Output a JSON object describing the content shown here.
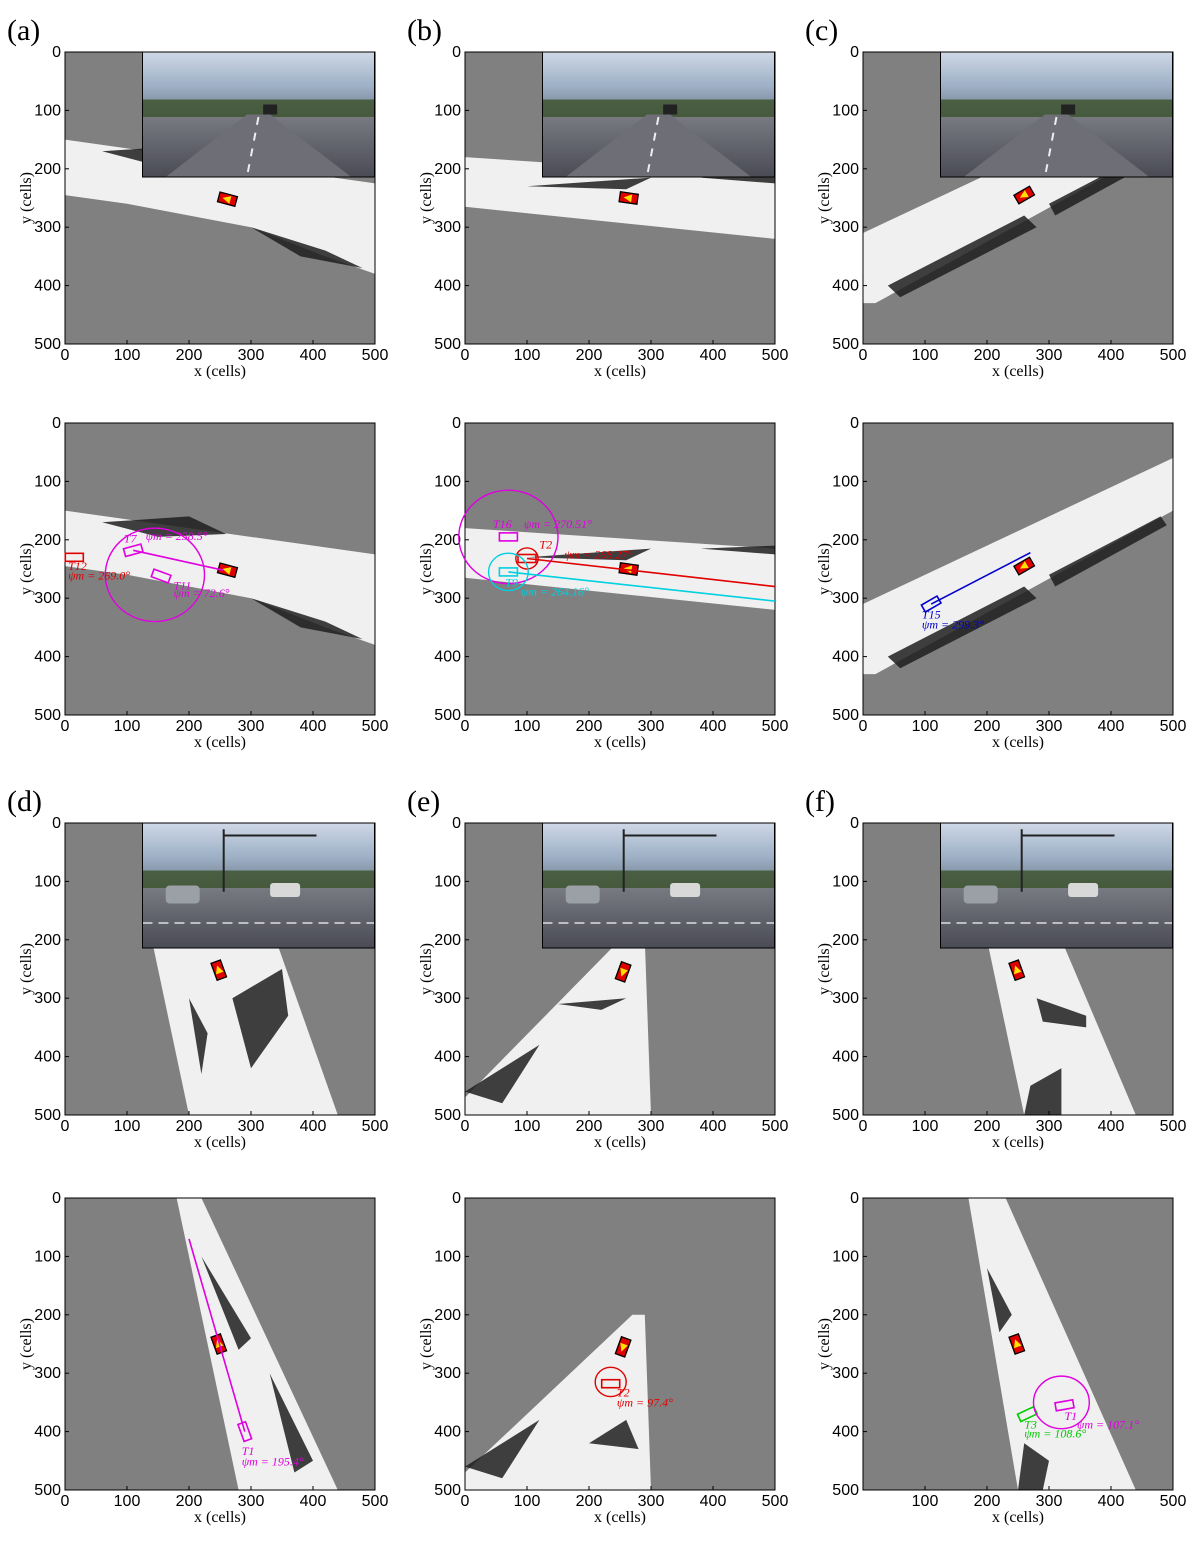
{
  "figure": {
    "panel_labels": [
      "(a)",
      "(b)",
      "(c)",
      "(d)",
      "(e)",
      "(f)"
    ],
    "x_axis_label": "x (cells)",
    "y_axis_label": "y (cells)",
    "tick_values": [
      "0",
      "100",
      "200",
      "300",
      "400",
      "500"
    ]
  },
  "colors": {
    "unknown": "#808080",
    "free": "#f5f5f5",
    "ego_fill": "#e00000",
    "ego_arrow": "#ffe000",
    "magenta": "#e000e0",
    "red": "#e00000",
    "cyan": "#00d0e0",
    "blue": "#0000cc",
    "green": "#00cc00"
  },
  "panels": [
    {
      "id": "a",
      "scene": "highway-left",
      "tracks": [
        {
          "name": "T7",
          "heading_label": "ψm = 258.5°",
          "color": "magenta"
        },
        {
          "name": "T11",
          "heading_label": "ψm = 72.6°",
          "color": "magenta"
        },
        {
          "name": "T12",
          "heading_label": "ψm = 269.0°",
          "color": "red"
        }
      ]
    },
    {
      "id": "b",
      "scene": "highway-straight",
      "tracks": [
        {
          "name": "T16",
          "heading_label": "ψm = 270.51°",
          "color": "magenta"
        },
        {
          "name": "T2",
          "heading_label": "ψm = 268.27°",
          "color": "red"
        },
        {
          "name": "T9",
          "heading_label": "ψm = 264.16°",
          "color": "cyan"
        }
      ]
    },
    {
      "id": "c",
      "scene": "highway-diagonal",
      "tracks": [
        {
          "name": "T15",
          "heading_label": "ψm = 299.3°",
          "color": "blue"
        }
      ]
    },
    {
      "id": "d",
      "scene": "intersection-north",
      "tracks": [
        {
          "name": "T1",
          "heading_label": "ψm = 195.4°",
          "color": "magenta"
        }
      ]
    },
    {
      "id": "e",
      "scene": "intersection-narrow",
      "tracks": [
        {
          "name": "T2",
          "heading_label": "ψm = 97.4°",
          "color": "red"
        }
      ]
    },
    {
      "id": "f",
      "scene": "intersection-cross",
      "tracks": [
        {
          "name": "T3",
          "heading_label": "ψm = 108.6°",
          "color": "green"
        },
        {
          "name": "T1",
          "heading_label": "ψm = 107.1°",
          "color": "magenta"
        }
      ]
    }
  ]
}
